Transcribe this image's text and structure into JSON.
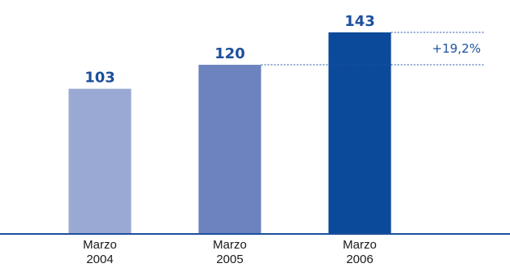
{
  "chart_data": {
    "type": "bar",
    "categories": [
      {
        "line1": "Marzo",
        "line2": "2004"
      },
      {
        "line1": "Marzo",
        "line2": "2005"
      },
      {
        "line1": "Marzo",
        "line2": "2006"
      }
    ],
    "values": [
      103,
      120,
      143
    ],
    "value_labels": [
      "103",
      "120",
      "143"
    ],
    "bar_colors": [
      "#9aa9d3",
      "#6c83bf",
      "#0b4a9a"
    ],
    "ylim": [
      0,
      160
    ],
    "grid": false,
    "annotation": {
      "text": "+19,2%",
      "from_value": 120,
      "to_value": 143,
      "color": "#1d4f9c"
    },
    "axis_color": "#1d4f9c"
  }
}
